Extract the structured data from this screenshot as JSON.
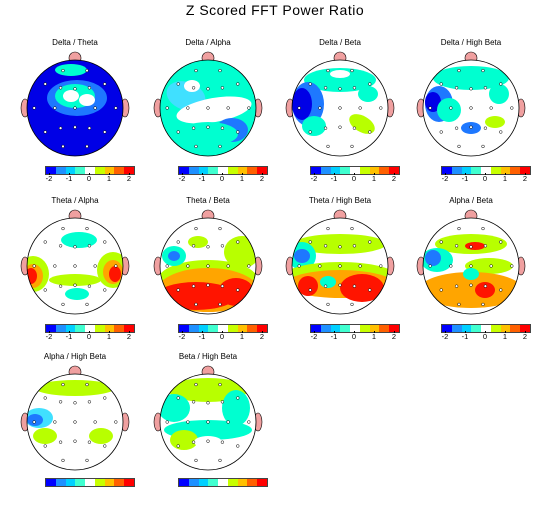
{
  "title": "Z Scored FFT Power Ratio",
  "scale": {
    "ticks": [
      "-2",
      "-1",
      "0",
      "1",
      "2"
    ],
    "colors": [
      "#0000ff",
      "#1e90ff",
      "#00d0ff",
      "#40ffd0",
      "#ffffff",
      "#c8ff00",
      "#ffc000",
      "#ff6000",
      "#ff0000"
    ]
  },
  "palette": {
    "white": "#ffffff",
    "blue": "#0000e6",
    "midblue": "#1e78ff",
    "cyan": "#00ffd0",
    "lightcyan": "#40e0ff",
    "green": "#b8ff00",
    "orange": "#ffa500",
    "red": "#ff1400",
    "ear": "#f0a0a0"
  },
  "maps": [
    {
      "label": "Delta / Theta"
    },
    {
      "label": "Delta / Alpha"
    },
    {
      "label": "Delta / Beta"
    },
    {
      "label": "Delta / High Beta"
    },
    {
      "label": "Theta / Alpha"
    },
    {
      "label": "Theta / Beta"
    },
    {
      "label": "Theta / High Beta"
    },
    {
      "label": "Alpha / Beta"
    },
    {
      "label": "Alpha / High Beta"
    },
    {
      "label": "Beta / High Beta"
    }
  ]
}
